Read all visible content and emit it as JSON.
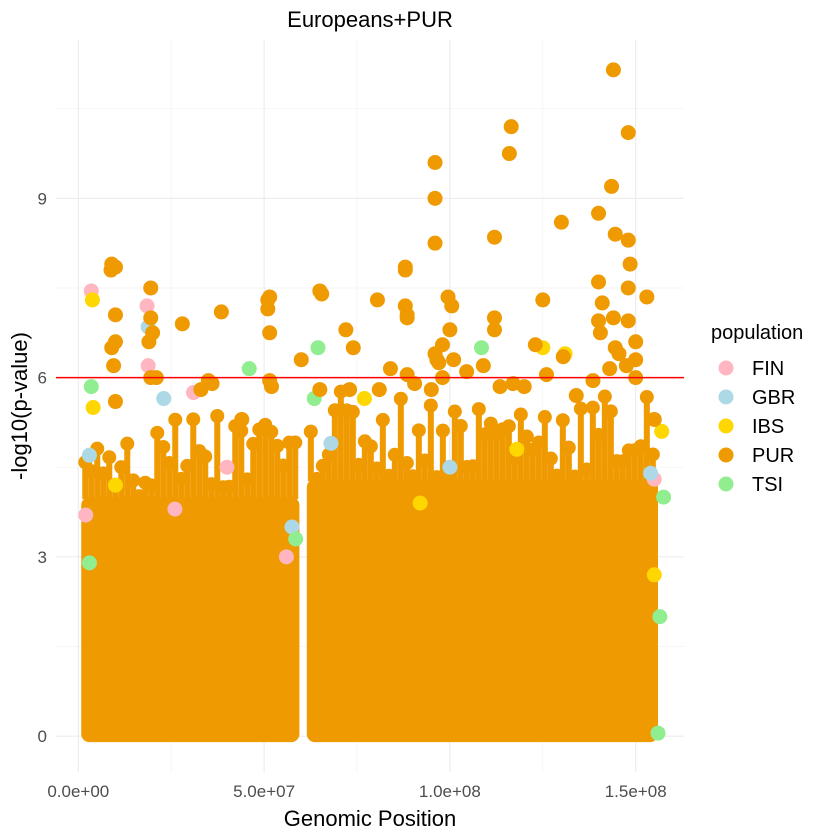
{
  "chart_data": {
    "type": "scatter",
    "title": "Europeans+PUR",
    "xlabel": "Genomic Position",
    "ylabel": "-log10(p-value)",
    "xlim": [
      -6000000,
      163000000
    ],
    "ylim": [
      -0.6,
      11.65
    ],
    "x_ticks": [
      0,
      50000000,
      100000000,
      150000000
    ],
    "x_tick_labels": [
      "0.0e+00",
      "5.0e+07",
      "1.0e+08",
      "1.5e+08"
    ],
    "y_ticks": [
      0,
      3,
      6,
      9
    ],
    "y_tick_labels": [
      "0",
      "3",
      "6",
      "9"
    ],
    "grid": true,
    "threshold": {
      "y": 6,
      "color": "#ff0000"
    },
    "legend": {
      "title": "population",
      "placement": "right",
      "entries": [
        {
          "name": "FIN",
          "color": "#ffb6c1"
        },
        {
          "name": "GBR",
          "color": "#add8e6"
        },
        {
          "name": "IBS",
          "color": "#ffd700"
        },
        {
          "name": "PUR",
          "color": "#ee9a00"
        },
        {
          "name": "TSI",
          "color": "#90ee90"
        }
      ]
    },
    "background_fill": {
      "series": "PUR",
      "ranges": [
        {
          "x_start": 800000,
          "x_end": 59500000,
          "y_max": 4.0
        },
        {
          "x_start": 61500000,
          "x_end": 156000000,
          "y_max": 4.3
        }
      ]
    },
    "series": [
      {
        "name": "FIN",
        "color": "#ffb6c1",
        "points": [
          [
            3500000,
            7.45
          ],
          [
            18500000,
            7.2
          ],
          [
            18800000,
            6.2
          ],
          [
            31000000,
            5.75
          ],
          [
            26000000,
            3.8
          ],
          [
            2000000,
            3.7
          ],
          [
            56000000,
            3.0
          ],
          [
            155000000,
            4.3
          ],
          [
            40000000,
            4.5
          ]
        ]
      },
      {
        "name": "GBR",
        "color": "#add8e6",
        "points": [
          [
            18800000,
            6.85
          ],
          [
            23000000,
            5.65
          ],
          [
            57500000,
            3.5
          ],
          [
            154000000,
            4.4
          ],
          [
            3000000,
            4.7
          ],
          [
            68000000,
            4.9
          ],
          [
            100000000,
            4.5
          ]
        ]
      },
      {
        "name": "IBS",
        "color": "#ffd700",
        "points": [
          [
            3800000,
            7.3
          ],
          [
            125000000,
            6.5
          ],
          [
            131000000,
            6.4
          ],
          [
            77000000,
            5.65
          ],
          [
            4000000,
            5.5
          ],
          [
            10000000,
            4.2
          ],
          [
            157000000,
            5.1
          ],
          [
            118000000,
            4.8
          ],
          [
            155000000,
            2.7
          ],
          [
            92000000,
            3.9
          ]
        ]
      },
      {
        "name": "TSI",
        "color": "#90ee90",
        "points": [
          [
            3500000,
            5.85
          ],
          [
            46000000,
            6.15
          ],
          [
            64500000,
            6.5
          ],
          [
            108500000,
            6.5
          ],
          [
            63500000,
            5.65
          ],
          [
            58500000,
            3.3
          ],
          [
            157500000,
            4.0
          ],
          [
            156500000,
            2.0
          ],
          [
            156000000,
            0.05
          ],
          [
            3000000,
            2.9
          ]
        ]
      },
      {
        "name": "PUR",
        "color": "#ee9a00",
        "points": [
          [
            144000000,
            11.15
          ],
          [
            116500000,
            10.2
          ],
          [
            148000000,
            10.1
          ],
          [
            116000000,
            9.75
          ],
          [
            96000000,
            9.6
          ],
          [
            143500000,
            9.2
          ],
          [
            96000000,
            9.0
          ],
          [
            140000000,
            8.75
          ],
          [
            130000000,
            8.6
          ],
          [
            112000000,
            8.35
          ],
          [
            144500000,
            8.4
          ],
          [
            148000000,
            8.3
          ],
          [
            96000000,
            8.25
          ],
          [
            9000000,
            7.9
          ],
          [
            10000000,
            7.85
          ],
          [
            8800000,
            7.8
          ],
          [
            19500000,
            7.5
          ],
          [
            65000000,
            7.45
          ],
          [
            65500000,
            7.4
          ],
          [
            51500000,
            7.35
          ],
          [
            51000000,
            7.3
          ],
          [
            80500000,
            7.3
          ],
          [
            125000000,
            7.3
          ],
          [
            99500000,
            7.35
          ],
          [
            100500000,
            7.2
          ],
          [
            153000000,
            7.35
          ],
          [
            148000000,
            7.5
          ],
          [
            148500000,
            7.9
          ],
          [
            140000000,
            7.6
          ],
          [
            141000000,
            7.25
          ],
          [
            88000000,
            7.8
          ],
          [
            88000000,
            7.85
          ],
          [
            88000000,
            7.2
          ],
          [
            88500000,
            7.0
          ],
          [
            88500000,
            7.05
          ],
          [
            51000000,
            7.15
          ],
          [
            38500000,
            7.1
          ],
          [
            10000000,
            7.05
          ],
          [
            19500000,
            7.0
          ],
          [
            20000000,
            6.75
          ],
          [
            28000000,
            6.9
          ],
          [
            51500000,
            6.75
          ],
          [
            72000000,
            6.8
          ],
          [
            100000000,
            6.8
          ],
          [
            112000000,
            7.0
          ],
          [
            112000000,
            6.8
          ],
          [
            140000000,
            6.95
          ],
          [
            144000000,
            7.0
          ],
          [
            148000000,
            6.95
          ],
          [
            140500000,
            6.75
          ],
          [
            130500000,
            6.35
          ],
          [
            123000000,
            6.55
          ],
          [
            98000000,
            6.55
          ],
          [
            74000000,
            6.5
          ],
          [
            60000000,
            6.3
          ],
          [
            9000000,
            6.5
          ],
          [
            9500000,
            6.2
          ],
          [
            19000000,
            6.6
          ],
          [
            10000000,
            6.6
          ],
          [
            96000000,
            6.4
          ],
          [
            96500000,
            6.3
          ],
          [
            144500000,
            6.5
          ],
          [
            145500000,
            6.4
          ],
          [
            147500000,
            6.2
          ],
          [
            150000000,
            6.6
          ],
          [
            150000000,
            6.3
          ],
          [
            104500000,
            6.1
          ],
          [
            109000000,
            6.2
          ],
          [
            117000000,
            5.9
          ],
          [
            113500000,
            5.85
          ],
          [
            98000000,
            6.0
          ],
          [
            88500000,
            6.05
          ],
          [
            97000000,
            6.25
          ],
          [
            101000000,
            6.3
          ],
          [
            126000000,
            6.05
          ],
          [
            138500000,
            5.95
          ],
          [
            143000000,
            6.15
          ],
          [
            150000000,
            6.0
          ],
          [
            21000000,
            6.0
          ],
          [
            19500000,
            6.0
          ],
          [
            35000000,
            5.95
          ],
          [
            36000000,
            5.9
          ],
          [
            65000000,
            5.8
          ],
          [
            73000000,
            5.8
          ],
          [
            51500000,
            5.95
          ],
          [
            52000000,
            5.85
          ],
          [
            81000000,
            5.8
          ],
          [
            84000000,
            6.15
          ],
          [
            90500000,
            5.9
          ],
          [
            10000000,
            5.6
          ],
          [
            33000000,
            5.8
          ],
          [
            95000000,
            5.8
          ],
          [
            120000000,
            5.85
          ],
          [
            134000000,
            5.7
          ],
          [
            44000000,
            5.3
          ],
          [
            155000000,
            5.3
          ]
        ]
      }
    ]
  }
}
